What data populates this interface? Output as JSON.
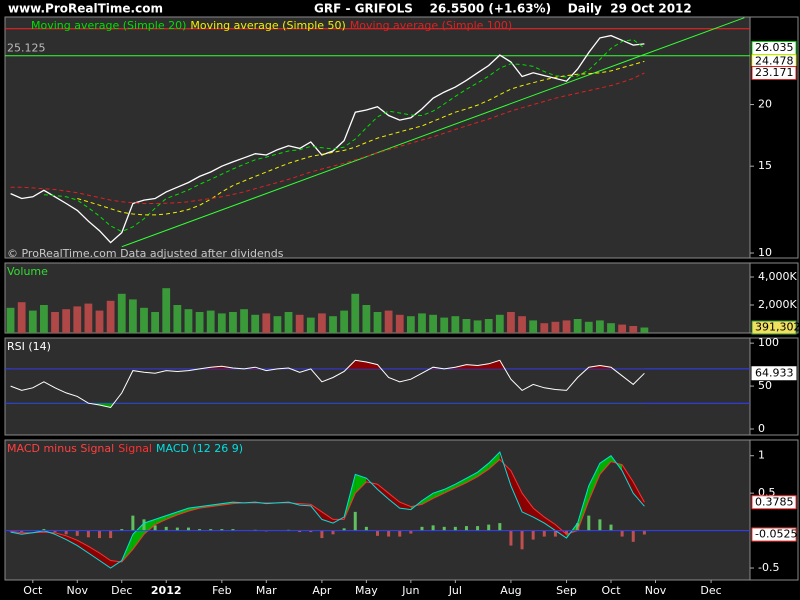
{
  "header": {
    "site": "www.ProRealTime.com",
    "title": "GRF - GRIFOLS    26.5500 (+1.63%)    Daily  29 Oct 2012"
  },
  "chart_data": [
    {
      "type": "line",
      "log_y": true,
      "ylim": [
        9.77,
        30.1
      ],
      "yticks": [
        10,
        15,
        20
      ],
      "footnote": "© ProRealTime.com Data adjusted after dividends",
      "series": [
        {
          "color": "#ffffff",
          "width": 1.3,
          "values": [
            13.2,
            12.9,
            13.0,
            13.4,
            13.0,
            12.6,
            12.2,
            11.6,
            11.1,
            10.5,
            11.0,
            12.6,
            12.8,
            12.9,
            13.3,
            13.6,
            13.9,
            14.3,
            14.6,
            15.0,
            15.3,
            15.6,
            15.9,
            15.8,
            16.2,
            16.5,
            16.3,
            16.8,
            15.8,
            16.1,
            16.9,
            19.3,
            19.5,
            19.8,
            19.0,
            18.6,
            18.8,
            19.6,
            20.6,
            21.2,
            21.7,
            22.4,
            23.2,
            24.0,
            25.2,
            24.4,
            22.8,
            23.2,
            22.9,
            22.6,
            22.3,
            23.6,
            25.5,
            27.3,
            27.6,
            27.0,
            26.4,
            26.55,
            null,
            null,
            null,
            null,
            null,
            null,
            null,
            null,
            null
          ]
        },
        {
          "name": "Moving average (Simple 20)",
          "color": "#00e000",
          "dashed": true,
          "value_box": true,
          "values": [
            null,
            null,
            null,
            13.13,
            13.08,
            13.0,
            12.8,
            12.35,
            11.88,
            11.35,
            11.05,
            11.3,
            11.73,
            12.33,
            12.9,
            13.15,
            13.43,
            13.78,
            14.1,
            14.45,
            14.8,
            15.13,
            15.45,
            15.65,
            15.88,
            16.1,
            16.2,
            16.45,
            16.35,
            16.25,
            16.4,
            17.03,
            17.95,
            18.88,
            19.4,
            19.23,
            19.05,
            19.0,
            19.4,
            20.05,
            20.78,
            21.48,
            22.13,
            22.83,
            23.7,
            24.2,
            24.1,
            23.9,
            23.33,
            22.88,
            22.75,
            22.85,
            23.5,
            24.68,
            26.0,
            26.85,
            27.08,
            26.035,
            null,
            null,
            null,
            null,
            null,
            null,
            null,
            null,
            null
          ]
        },
        {
          "name": "Moving average (Simple 50)",
          "color": "#f0f000",
          "dashed": true,
          "value_box": true,
          "values": [
            null,
            null,
            null,
            null,
            null,
            null,
            12.9,
            12.7,
            12.5,
            12.3,
            12.1,
            12.0,
            11.95,
            11.95,
            12.0,
            12.1,
            12.25,
            12.5,
            12.85,
            13.3,
            13.7,
            14.0,
            14.3,
            14.6,
            14.9,
            15.2,
            15.45,
            15.7,
            15.85,
            16.0,
            16.15,
            16.4,
            16.75,
            17.1,
            17.35,
            17.6,
            17.85,
            18.1,
            18.5,
            18.9,
            19.3,
            19.6,
            19.95,
            20.4,
            20.95,
            21.5,
            21.85,
            22.15,
            22.45,
            22.7,
            22.9,
            23.05,
            23.1,
            23.2,
            23.4,
            23.75,
            24.1,
            24.478,
            null,
            null,
            null,
            null,
            null,
            null,
            null,
            null,
            null
          ]
        },
        {
          "name": "Moving average (Simple 100)",
          "color": "#e02020",
          "dashed": true,
          "value_box": true,
          "values": [
            13.6,
            13.6,
            13.55,
            13.5,
            13.45,
            13.35,
            13.25,
            13.1,
            12.95,
            12.8,
            12.7,
            12.65,
            12.6,
            12.6,
            12.62,
            12.65,
            12.7,
            12.8,
            12.9,
            13.0,
            13.15,
            13.3,
            13.5,
            13.7,
            13.9,
            14.1,
            14.35,
            14.6,
            14.8,
            15.0,
            15.2,
            15.45,
            15.7,
            15.95,
            16.2,
            16.45,
            16.7,
            16.95,
            17.2,
            17.5,
            17.8,
            18.1,
            18.4,
            18.7,
            19.05,
            19.4,
            19.7,
            20.0,
            20.3,
            20.6,
            20.85,
            21.1,
            21.35,
            21.6,
            21.85,
            22.2,
            22.6,
            23.171,
            null,
            null,
            null,
            null,
            null,
            null,
            null,
            null,
            null
          ]
        }
      ],
      "trend_line": {
        "x": [
          10,
          66
        ],
        "values": [
          10.3,
          30.0
        ],
        "color": "#33ff33"
      },
      "hlines": [
        {
          "value": 25.125,
          "color": "#33ff33",
          "labeled": true
        },
        {
          "value": 28.5,
          "color": "#ff2020"
        }
      ]
    },
    {
      "type": "bar",
      "title": "Volume",
      "title_color": "#33dd33",
      "ylim": [
        0,
        5000000
      ],
      "yticks": [
        {
          "value": 4000000,
          "label": "4,000K"
        },
        {
          "value": 2000000,
          "label": "2,000K"
        }
      ],
      "up_color": "#3a9a3a",
      "down_color": "#b04848",
      "box_fill": "#f0e060",
      "values": [
        1800000,
        2200000,
        1600000,
        2000000,
        1500000,
        1700000,
        1900000,
        2100000,
        1600000,
        2300000,
        2800000,
        2400000,
        1800000,
        1500000,
        3200000,
        2000000,
        1700000,
        1500000,
        1600000,
        1400000,
        1500000,
        1700000,
        1300000,
        1400000,
        1200000,
        1500000,
        1300000,
        1100000,
        1400000,
        1200000,
        1600000,
        2800000,
        2000000,
        1500000,
        1600000,
        1300000,
        1200000,
        1400000,
        1300000,
        1100000,
        1200000,
        1000000,
        900000,
        1000000,
        1300000,
        1500000,
        1200000,
        900000,
        700000,
        800000,
        900000,
        1000000,
        800000,
        900000,
        700000,
        600000,
        500000,
        391302,
        null,
        null,
        null,
        null,
        null,
        null,
        null,
        null,
        null
      ],
      "value_labels": [
        null,
        null,
        null,
        null,
        null,
        null,
        null,
        null,
        null,
        null,
        null,
        null,
        null,
        null,
        null,
        null,
        null,
        null,
        null,
        null,
        null,
        null,
        null,
        null,
        null,
        null,
        null,
        null,
        null,
        null,
        null,
        null,
        null,
        null,
        null,
        null,
        null,
        null,
        null,
        null,
        null,
        null,
        null,
        null,
        null,
        null,
        null,
        null,
        null,
        null,
        null,
        null,
        null,
        null,
        null,
        null,
        null,
        "391,302",
        null,
        null,
        null,
        null,
        null,
        null,
        null,
        null,
        null
      ]
    },
    {
      "type": "line",
      "title": "RSI (14)",
      "title_color": "#ffffff",
      "ylim": [
        -7,
        106
      ],
      "yticks": [
        100,
        50,
        0
      ],
      "levels": [
        70,
        30
      ],
      "level_color": "#3040ff",
      "overbought_color": "#8b0000",
      "oversold_color": "#00a000",
      "series": [
        {
          "color": "#ffffff",
          "value_box": true,
          "values": [
            50,
            45,
            48,
            55,
            48,
            42,
            38,
            30,
            28,
            25,
            42,
            68,
            66,
            65,
            68,
            67,
            68,
            70,
            72,
            73,
            71,
            70,
            72,
            68,
            70,
            71,
            66,
            70,
            55,
            60,
            67,
            80,
            78,
            75,
            60,
            55,
            58,
            65,
            72,
            70,
            72,
            75,
            74,
            76,
            80,
            58,
            45,
            52,
            48,
            46,
            45,
            60,
            72,
            74,
            72,
            62,
            52,
            64.933,
            null,
            null,
            null,
            null,
            null,
            null,
            null,
            null,
            null
          ]
        }
      ]
    },
    {
      "type": "line",
      "ylim": [
        -0.66,
        1.21
      ],
      "yticks": [
        1,
        0.5,
        -0.5
      ],
      "zero_line_color": "#3040ff",
      "fill_above": "#00b000",
      "fill_below": "#8b0000",
      "series": [
        {
          "name": "MACD minus Signal",
          "type": "bar",
          "color": "#ff4040",
          "up_color": "#60c060",
          "down_color": "#c05050",
          "value_box": true,
          "values": [
            -0.01,
            -0.02,
            0.0,
            0.02,
            -0.02,
            -0.05,
            -0.07,
            -0.09,
            -0.1,
            -0.1,
            0.02,
            0.2,
            0.15,
            0.07,
            0.05,
            0.04,
            0.04,
            0.02,
            0.02,
            0.02,
            0.02,
            0.0,
            0.01,
            -0.01,
            0.0,
            0.01,
            -0.02,
            -0.02,
            -0.1,
            -0.05,
            0.03,
            0.25,
            0.05,
            -0.07,
            -0.08,
            -0.08,
            -0.04,
            0.05,
            0.07,
            0.05,
            0.05,
            0.06,
            0.06,
            0.08,
            0.1,
            -0.2,
            -0.25,
            -0.12,
            -0.08,
            -0.08,
            -0.05,
            0.1,
            0.2,
            0.15,
            0.08,
            -0.08,
            -0.15,
            -0.0525,
            null,
            null,
            null,
            null,
            null,
            null,
            null,
            null,
            null
          ]
        },
        {
          "name": "Signal",
          "color": "#ff3030",
          "value_box": true,
          "values": [
            -0.01,
            -0.03,
            -0.03,
            -0.02,
            -0.03,
            -0.07,
            -0.13,
            -0.21,
            -0.3,
            -0.4,
            -0.42,
            -0.25,
            -0.05,
            0.08,
            0.15,
            0.21,
            0.26,
            0.3,
            0.32,
            0.34,
            0.36,
            0.37,
            0.37,
            0.37,
            0.37,
            0.37,
            0.36,
            0.35,
            0.25,
            0.15,
            0.15,
            0.5,
            0.65,
            0.62,
            0.5,
            0.38,
            0.32,
            0.35,
            0.43,
            0.5,
            0.57,
            0.64,
            0.72,
            0.82,
            0.95,
            0.8,
            0.5,
            0.3,
            0.18,
            0.08,
            -0.05,
            0.0,
            0.4,
            0.75,
            0.92,
            0.88,
            0.65,
            0.3785,
            null,
            null,
            null,
            null,
            null,
            null,
            null,
            null,
            null
          ]
        },
        {
          "name": "MACD (12 26 9)",
          "color": "#00e0e0",
          "values": [
            -0.02,
            -0.05,
            -0.03,
            0.0,
            -0.05,
            -0.12,
            -0.2,
            -0.3,
            -0.4,
            -0.5,
            -0.4,
            -0.05,
            0.1,
            0.15,
            0.2,
            0.25,
            0.3,
            0.32,
            0.34,
            0.36,
            0.38,
            0.37,
            0.38,
            0.36,
            0.37,
            0.38,
            0.34,
            0.33,
            0.15,
            0.1,
            0.18,
            0.75,
            0.7,
            0.55,
            0.42,
            0.3,
            0.28,
            0.4,
            0.5,
            0.55,
            0.62,
            0.7,
            0.78,
            0.9,
            1.05,
            0.6,
            0.25,
            0.18,
            0.1,
            0.0,
            -0.1,
            0.1,
            0.6,
            0.9,
            1.0,
            0.8,
            0.5,
            0.326,
            null,
            null,
            null,
            null,
            null,
            null,
            null,
            null,
            null
          ]
        }
      ],
      "categories": [
        null,
        null,
        "Oct",
        null,
        null,
        null,
        "Nov",
        null,
        null,
        null,
        "Dec",
        null,
        null,
        null,
        "2012",
        null,
        null,
        null,
        null,
        "Feb",
        null,
        null,
        null,
        "Mar",
        null,
        null,
        null,
        null,
        "Apr",
        null,
        null,
        null,
        "May",
        null,
        null,
        null,
        "Jun",
        null,
        null,
        null,
        "Jul",
        null,
        null,
        null,
        null,
        "Aug",
        null,
        null,
        null,
        null,
        "Sep",
        null,
        null,
        null,
        "Oct",
        null,
        null,
        null,
        "Nov",
        null,
        null,
        null,
        null,
        "Dec",
        null,
        null,
        null
      ]
    }
  ]
}
